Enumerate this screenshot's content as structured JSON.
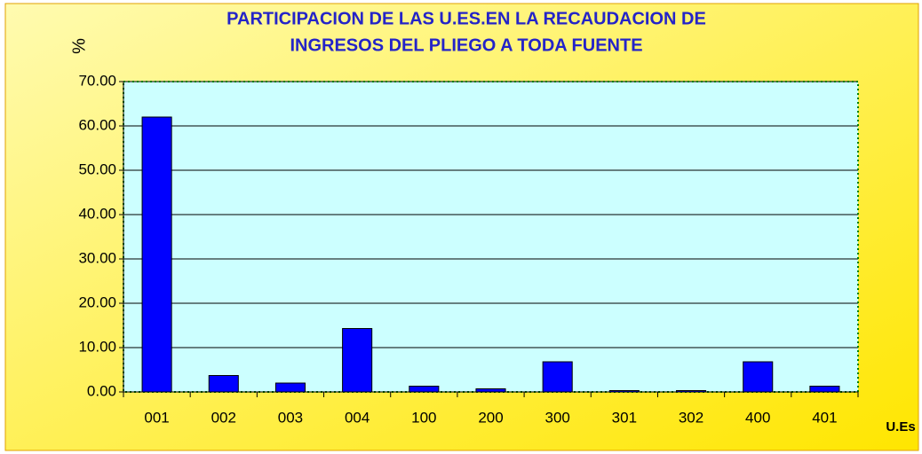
{
  "chart_data": {
    "type": "bar",
    "title": [
      "PARTICIPACION DE LAS U.ES.EN LA RECAUDACION DE",
      "INGRESOS DEL PLIEGO A TODA FUENTE"
    ],
    "y_label": "%",
    "x_label": "U.Es",
    "categories": [
      "001",
      "002",
      "003",
      "004",
      "100",
      "200",
      "300",
      "301",
      "302",
      "400",
      "401"
    ],
    "values": [
      62.0,
      3.7,
      2.0,
      14.3,
      1.3,
      0.7,
      6.8,
      0.3,
      0.3,
      6.8,
      1.3
    ],
    "color": "#0000ff",
    "ylim": [
      0,
      70
    ],
    "yticks": [
      {
        "value": 0,
        "label": "0.00"
      },
      {
        "value": 10,
        "label": "10.00"
      },
      {
        "value": 20,
        "label": "20.00"
      },
      {
        "value": 30,
        "label": "30.00"
      },
      {
        "value": 40,
        "label": "40.00"
      },
      {
        "value": 50,
        "label": "50.00"
      },
      {
        "value": 60,
        "label": "60.00"
      },
      {
        "value": 70,
        "label": "70.00"
      }
    ],
    "grid": true
  }
}
